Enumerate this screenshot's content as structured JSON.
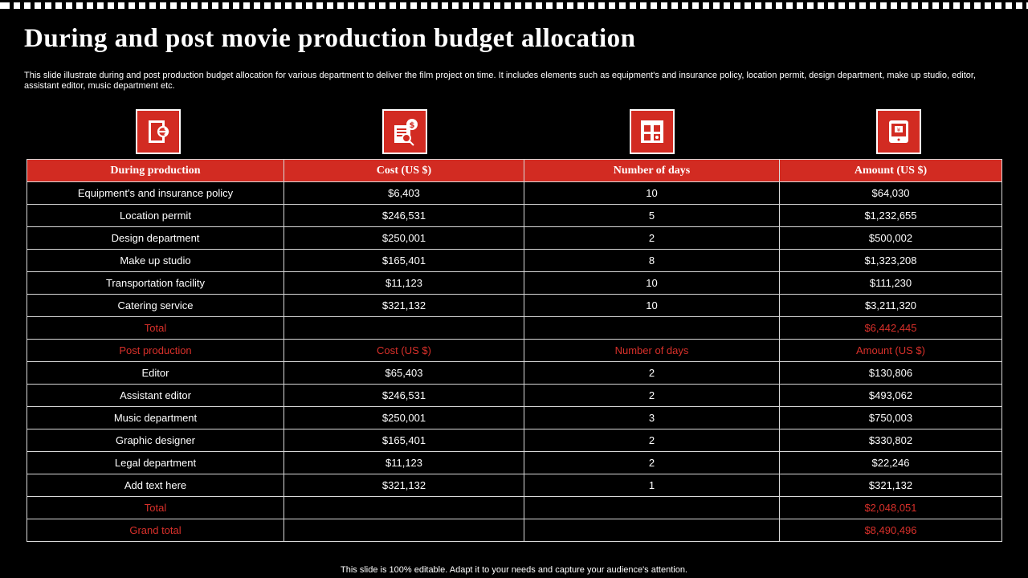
{
  "title": "During and post movie production budget allocation",
  "subtitle": "This slide illustrate during and post production budget allocation for various department to deliver the film project on time. It includes elements such as equipment's and insurance policy, location permit, design department, make up studio, editor, assistant editor, music department etc.",
  "icons": [
    "exit-door-icon",
    "money-document-icon",
    "calendar-grid-icon",
    "mobile-payment-icon"
  ],
  "colors": {
    "accent": "#d22b22",
    "background": "#000000",
    "text": "#ffffff"
  },
  "table": {
    "headers": [
      "During production",
      "Cost (US $)",
      "Number of days",
      "Amount (US $)"
    ],
    "during_rows": [
      [
        "Equipment's and insurance policy",
        "$6,403",
        "10",
        "$64,030"
      ],
      [
        "Location permit",
        "$246,531",
        "5",
        "$1,232,655"
      ],
      [
        "Design department",
        "$250,001",
        "2",
        "$500,002"
      ],
      [
        "Make up studio",
        "$165,401",
        "8",
        "$1,323,208"
      ],
      [
        "Transportation facility",
        "$11,123",
        "10",
        "$111,230"
      ],
      [
        "Catering service",
        "$321,132",
        "10",
        "$3,211,320"
      ]
    ],
    "during_total": {
      "label": "Total",
      "amount": "$6,442,445"
    },
    "post_headers": [
      "Post production",
      "Cost (US $)",
      "Number of days",
      "Amount (US $)"
    ],
    "post_rows": [
      [
        "Editor",
        "$65,403",
        "2",
        "$130,806"
      ],
      [
        "Assistant editor",
        "$246,531",
        "2",
        "$493,062"
      ],
      [
        "Music department",
        "$250,001",
        "3",
        "$750,003"
      ],
      [
        "Graphic designer",
        "$165,401",
        "2",
        "$330,802"
      ],
      [
        "Legal department",
        "$11,123",
        "2",
        "$22,246"
      ],
      [
        "Add text here",
        "$321,132",
        "1",
        "$321,132"
      ]
    ],
    "post_total": {
      "label": "Total",
      "amount": "$2,048,051"
    },
    "grand_total": {
      "label": "Grand total",
      "amount": "$8,490,496"
    }
  },
  "footer": "This slide is 100% editable. Adapt it to your needs and capture your audience's attention."
}
